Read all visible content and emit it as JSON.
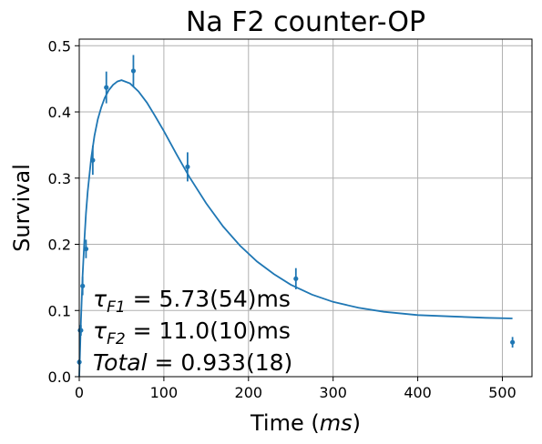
{
  "chart_data": {
    "type": "scatter",
    "title": "Na F2 counter-OP",
    "xlabel": "Time",
    "xlabel_unit": "ms",
    "ylabel": "Survival",
    "xlim": [
      0,
      535
    ],
    "ylim": [
      0,
      0.51
    ],
    "xticks": [
      0,
      100,
      200,
      300,
      400,
      500
    ],
    "yticks": [
      0.0,
      0.1,
      0.2,
      0.3,
      0.4,
      0.5
    ],
    "grid": true,
    "color": "#1f77b4",
    "points": [
      {
        "x": 0.1,
        "y": 0.022,
        "err": 0.004
      },
      {
        "x": 1,
        "y": 0.07,
        "err": 0.008
      },
      {
        "x": 2,
        "y": 0.07,
        "err": 0.008
      },
      {
        "x": 4,
        "y": 0.137,
        "err": 0.014
      },
      {
        "x": 8,
        "y": 0.193,
        "err": 0.014
      },
      {
        "x": 16,
        "y": 0.327,
        "err": 0.022
      },
      {
        "x": 32,
        "y": 0.437,
        "err": 0.024
      },
      {
        "x": 64,
        "y": 0.462,
        "err": 0.024
      },
      {
        "x": 128,
        "y": 0.317,
        "err": 0.022
      },
      {
        "x": 256,
        "y": 0.148,
        "err": 0.016
      },
      {
        "x": 512,
        "y": 0.052,
        "err": 0.008
      }
    ],
    "fit_curve": {
      "x": [
        0,
        2,
        4,
        6,
        8,
        10,
        14,
        18,
        22,
        26,
        30,
        35,
        40,
        45,
        50,
        60,
        70,
        80,
        90,
        100,
        115,
        130,
        150,
        170,
        190,
        210,
        230,
        250,
        275,
        300,
        330,
        360,
        400,
        440,
        480,
        512
      ],
      "y": [
        0.0,
        0.086,
        0.153,
        0.205,
        0.247,
        0.28,
        0.329,
        0.364,
        0.389,
        0.407,
        0.421,
        0.433,
        0.441,
        0.446,
        0.448,
        0.443,
        0.431,
        0.414,
        0.393,
        0.371,
        0.336,
        0.302,
        0.262,
        0.227,
        0.198,
        0.174,
        0.155,
        0.139,
        0.124,
        0.113,
        0.104,
        0.098,
        0.093,
        0.091,
        0.089,
        0.088
      ]
    },
    "annotations": [
      {
        "var": "τ",
        "sub": "F1",
        "value": " = 5.73(54)ms"
      },
      {
        "var": "τ",
        "sub": "F2",
        "value": " = 11.0(10)ms"
      },
      {
        "var": "Total",
        "sub": "",
        "value": " = 0.933(18)"
      }
    ]
  }
}
